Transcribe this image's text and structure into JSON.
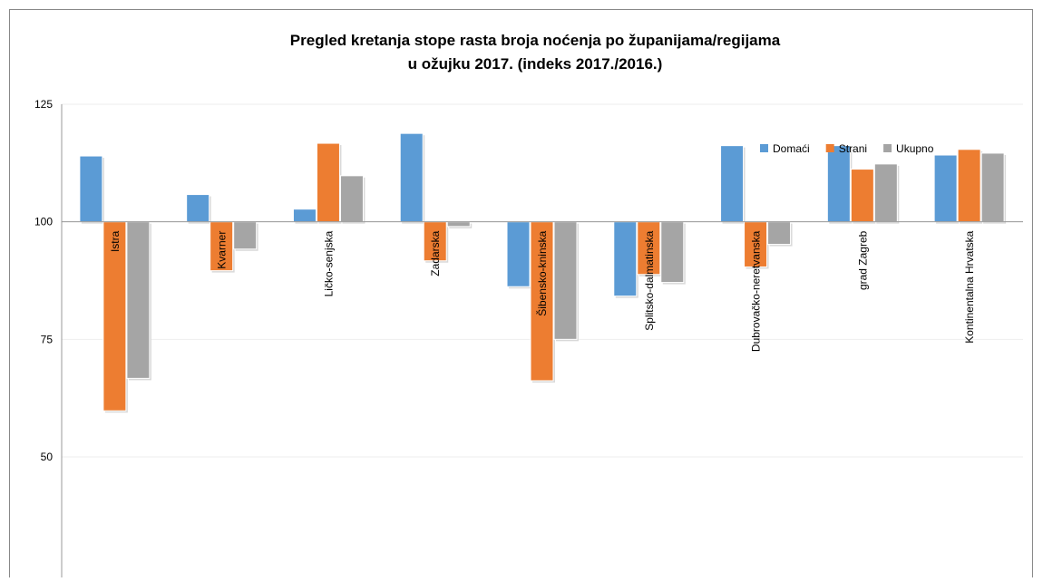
{
  "chart_data": {
    "type": "bar",
    "title": [
      "Pregled kretanja stope rasta broja noćenja po županijama/regijama",
      "u ožujku 2017.  (indeks 2017./2016.)"
    ],
    "categories": [
      "Istra",
      "Kvarner",
      "Ličko-senjska",
      "Zadarska",
      "Šibensko-kninska",
      "Splitsko-dalmatinska",
      "Dubrovačko-neretvanska",
      "grad Zagreb",
      "Kontinentalna Hrvatska"
    ],
    "series": [
      {
        "name": "Domaći",
        "color": "#5b9bd5",
        "values": [
          114.0,
          105.8,
          102.7,
          118.8,
          86.2,
          84.2,
          116.2,
          116.2,
          114.2
        ]
      },
      {
        "name": "Strani",
        "color": "#ed7d31",
        "values": [
          59.8,
          89.6,
          116.7,
          91.7,
          66.2,
          88.8,
          90.4,
          111.2,
          115.4
        ]
      },
      {
        "name": "Ukupno",
        "color": "#a5a5a5",
        "values": [
          66.7,
          94.2,
          109.8,
          99.0,
          75.0,
          87.1,
          95.2,
          112.3,
          114.6
        ]
      }
    ],
    "ylim": [
      50,
      125
    ],
    "yticks": [
      50,
      75,
      100,
      125
    ],
    "grid": true,
    "legend": "top-right"
  }
}
